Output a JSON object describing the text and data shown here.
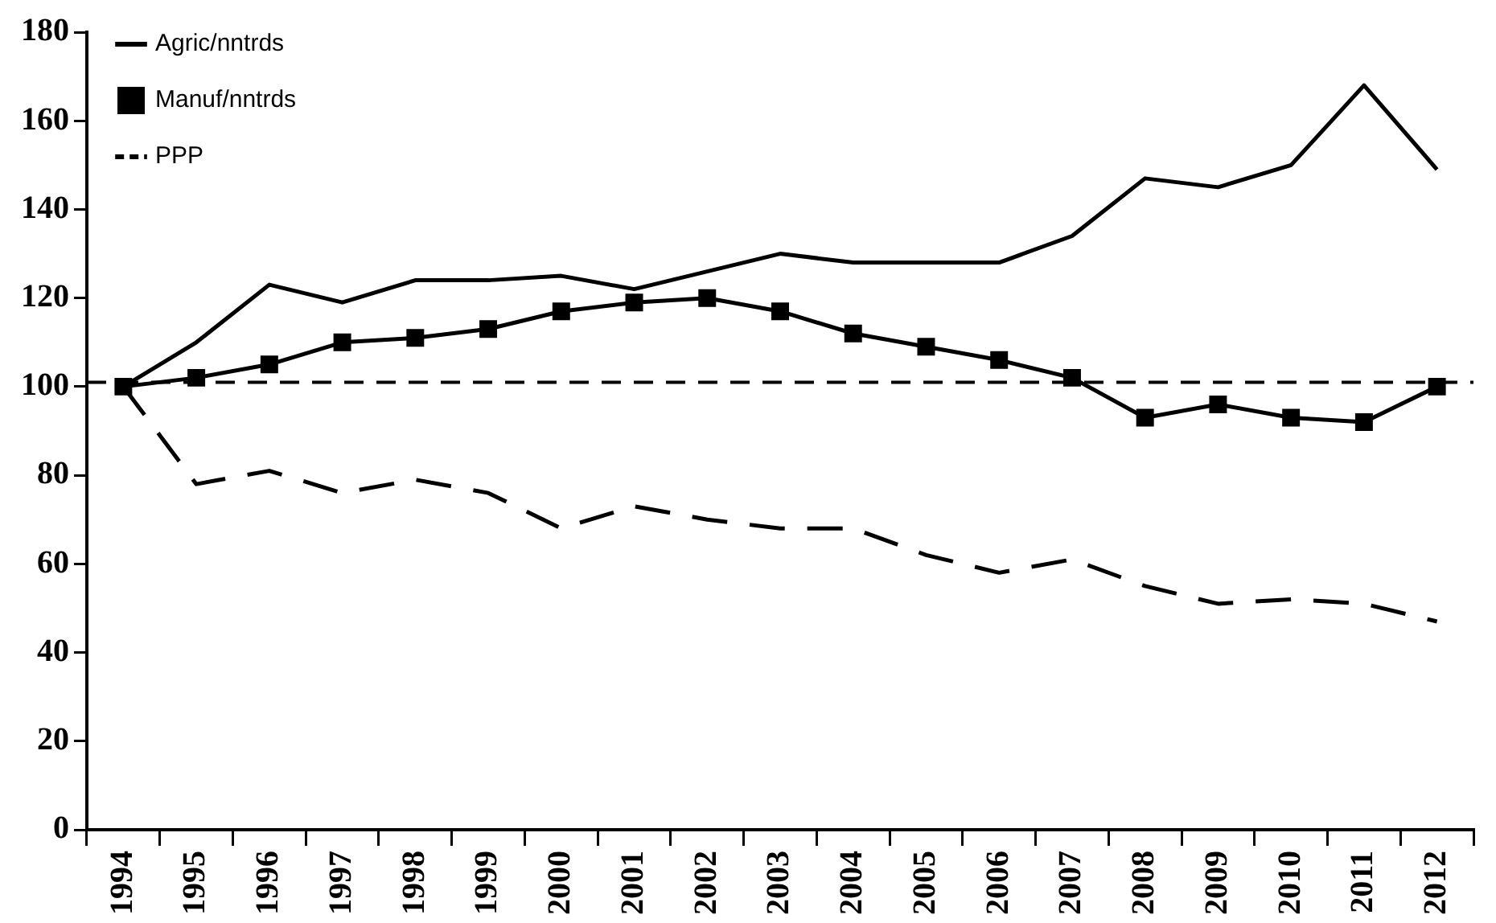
{
  "chart_data": {
    "type": "line",
    "categories": [
      "1994",
      "1995",
      "1996",
      "1997",
      "1998",
      "1999",
      "2000",
      "2001",
      "2002",
      "2003",
      "2004",
      "2005",
      "2006",
      "2007",
      "2008",
      "2009",
      "2010",
      "2011",
      "2012"
    ],
    "series": [
      {
        "name": "Agric/nntrds",
        "color": "#000000",
        "marker": "none",
        "line_style": "solid",
        "values": [
          100,
          110,
          123,
          119,
          124,
          124,
          125,
          122,
          126,
          130,
          128,
          128,
          128,
          134,
          147,
          145,
          150,
          168,
          149
        ]
      },
      {
        "name": "Manuf/nntrds",
        "color": "#000000",
        "marker": "square",
        "line_style": "solid",
        "values": [
          100,
          102,
          105,
          110,
          111,
          113,
          117,
          119,
          120,
          117,
          112,
          109,
          106,
          102,
          93,
          96,
          93,
          92,
          100
        ]
      },
      {
        "name": "PPP",
        "color": "#000000",
        "marker": "none",
        "line_style": "dashed",
        "values": [
          100,
          78,
          81,
          76,
          79,
          76,
          68,
          73,
          70,
          68,
          68,
          62,
          58,
          61,
          55,
          51,
          52,
          51,
          47
        ]
      }
    ],
    "ylim": [
      0,
      180
    ],
    "yticks": [
      0,
      20,
      40,
      60,
      80,
      100,
      120,
      140,
      160,
      180
    ],
    "ref_lines": [
      {
        "axis": "y",
        "value": 101,
        "color": "#000000",
        "line_style": "dashed"
      }
    ],
    "grid": false,
    "legend": "top left"
  }
}
